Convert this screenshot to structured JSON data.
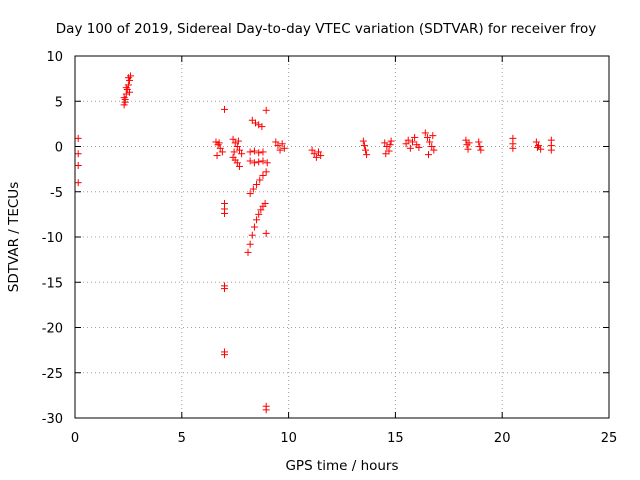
{
  "chart_data": {
    "type": "scatter",
    "title": "Day 100 of 2019, Sidereal Day-to-day VTEC variation (SDTVAR) for receiver froy",
    "xlabel": "GPS time / hours",
    "ylabel": "SDTVAR / TECUs",
    "xlim": [
      0,
      25
    ],
    "ylim": [
      -30,
      10
    ],
    "x_ticks": [
      0,
      5,
      10,
      15,
      20,
      25
    ],
    "y_ticks": [
      10,
      5,
      0,
      -5,
      -10,
      -15,
      -20,
      -25,
      -30
    ],
    "grid": true,
    "marker": "+",
    "color": "#ff0000",
    "series": [
      {
        "name": "SDTVAR",
        "points": [
          [
            0.15,
            0.9
          ],
          [
            0.15,
            -0.8
          ],
          [
            0.15,
            -2.1
          ],
          [
            0.15,
            -4.0
          ],
          [
            2.3,
            4.6
          ],
          [
            2.35,
            5.2
          ],
          [
            2.4,
            5.8
          ],
          [
            2.45,
            6.3
          ],
          [
            2.5,
            6.8
          ],
          [
            2.55,
            7.3
          ],
          [
            2.6,
            7.8
          ],
          [
            2.3,
            5.4
          ],
          [
            2.4,
            6.5
          ],
          [
            2.5,
            7.6
          ],
          [
            2.35,
            4.9
          ],
          [
            2.55,
            6.0
          ],
          [
            6.6,
            0.5
          ],
          [
            6.7,
            0.2
          ],
          [
            6.8,
            -0.2
          ],
          [
            6.9,
            -0.6
          ],
          [
            6.65,
            -1.0
          ],
          [
            6.75,
            0.4
          ],
          [
            7.0,
            4.1
          ],
          [
            7.0,
            -6.3
          ],
          [
            7.0,
            -6.9
          ],
          [
            7.0,
            -7.4
          ],
          [
            7.0,
            -15.4
          ],
          [
            7.0,
            -15.7
          ],
          [
            7.0,
            -22.7
          ],
          [
            7.0,
            -23.0
          ],
          [
            7.4,
            0.8
          ],
          [
            7.5,
            0.4
          ],
          [
            7.6,
            0.0
          ],
          [
            7.7,
            -0.4
          ],
          [
            7.8,
            -0.8
          ],
          [
            7.45,
            -0.6
          ],
          [
            7.65,
            0.6
          ],
          [
            7.4,
            -1.2
          ],
          [
            7.5,
            -1.5
          ],
          [
            7.6,
            -1.8
          ],
          [
            7.7,
            -2.2
          ],
          [
            8.2,
            -1.6
          ],
          [
            8.4,
            -1.8
          ],
          [
            8.6,
            -1.7
          ],
          [
            8.8,
            -1.6
          ],
          [
            9.0,
            -1.8
          ],
          [
            8.2,
            -0.6
          ],
          [
            8.4,
            -0.5
          ],
          [
            8.6,
            -0.7
          ],
          [
            8.8,
            -0.6
          ],
          [
            8.3,
            2.9
          ],
          [
            8.45,
            2.6
          ],
          [
            8.6,
            2.4
          ],
          [
            8.75,
            2.2
          ],
          [
            8.2,
            -5.2
          ],
          [
            8.35,
            -4.7
          ],
          [
            8.5,
            -4.2
          ],
          [
            8.65,
            -3.7
          ],
          [
            8.8,
            -3.2
          ],
          [
            8.95,
            -2.8
          ],
          [
            8.1,
            -11.7
          ],
          [
            8.2,
            -10.8
          ],
          [
            8.3,
            -9.8
          ],
          [
            8.4,
            -8.9
          ],
          [
            8.5,
            -8.1
          ],
          [
            8.6,
            -7.5
          ],
          [
            8.7,
            -7.0
          ],
          [
            8.8,
            -6.6
          ],
          [
            8.9,
            -6.3
          ],
          [
            8.95,
            4.0
          ],
          [
            8.95,
            -9.6
          ],
          [
            8.95,
            -28.7
          ],
          [
            8.95,
            -29.1
          ],
          [
            9.4,
            0.5
          ],
          [
            9.5,
            0.1
          ],
          [
            9.6,
            -0.4
          ],
          [
            9.7,
            0.3
          ],
          [
            9.8,
            -0.2
          ],
          [
            11.1,
            -0.4
          ],
          [
            11.2,
            -0.8
          ],
          [
            11.3,
            -1.2
          ],
          [
            11.4,
            -0.6
          ],
          [
            11.5,
            -1.0
          ],
          [
            13.5,
            0.6
          ],
          [
            13.55,
            0.1
          ],
          [
            13.6,
            -0.4
          ],
          [
            13.65,
            -0.9
          ],
          [
            14.5,
            0.4
          ],
          [
            14.6,
            0.0
          ],
          [
            14.7,
            -0.5
          ],
          [
            14.8,
            0.6
          ],
          [
            14.55,
            -0.8
          ],
          [
            14.75,
            0.2
          ],
          [
            15.5,
            0.3
          ],
          [
            15.6,
            0.7
          ],
          [
            15.7,
            -0.2
          ],
          [
            15.8,
            0.5
          ],
          [
            15.9,
            1.0
          ],
          [
            16.0,
            0.2
          ],
          [
            16.1,
            -0.1
          ],
          [
            16.4,
            1.5
          ],
          [
            16.5,
            1.0
          ],
          [
            16.6,
            0.5
          ],
          [
            16.7,
            0.0
          ],
          [
            16.8,
            -0.4
          ],
          [
            16.55,
            -0.9
          ],
          [
            16.75,
            1.2
          ],
          [
            18.3,
            0.7
          ],
          [
            18.35,
            0.2
          ],
          [
            18.4,
            -0.3
          ],
          [
            18.45,
            0.4
          ],
          [
            18.9,
            0.5
          ],
          [
            18.95,
            0.0
          ],
          [
            19.0,
            -0.4
          ],
          [
            20.5,
            0.9
          ],
          [
            20.5,
            0.3
          ],
          [
            20.5,
            -0.2
          ],
          [
            21.6,
            0.5
          ],
          [
            21.7,
            0.1
          ],
          [
            21.8,
            -0.3
          ],
          [
            21.65,
            -0.1
          ],
          [
            22.3,
            0.7
          ],
          [
            22.3,
            0.1
          ],
          [
            22.3,
            -0.4
          ]
        ]
      }
    ]
  }
}
